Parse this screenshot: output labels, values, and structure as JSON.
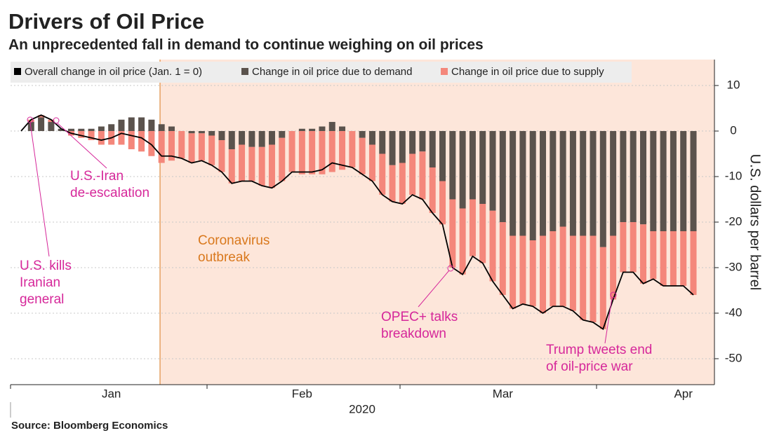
{
  "chart_data": {
    "type": "bar",
    "title": "Drivers of Oil Price",
    "subtitle": "An unprecedented fall in demand to continue weighing on oil prices",
    "ylabel": "U.S. dollars per barrel",
    "xlabel": "2020",
    "source": "Source: Bloomberg Economics",
    "categories": [
      null,
      null,
      null,
      null,
      null,
      null,
      null,
      null,
      null,
      "Jan",
      null,
      null,
      null,
      null,
      null,
      null,
      null,
      null,
      null,
      null,
      null,
      null,
      null,
      null,
      null,
      null,
      null,
      null,
      "Feb",
      null,
      null,
      null,
      null,
      null,
      null,
      null,
      null,
      null,
      null,
      null,
      null,
      null,
      null,
      null,
      null,
      null,
      null,
      null,
      "Mar",
      null,
      null,
      null,
      null,
      null,
      null,
      null,
      null,
      null,
      null,
      null,
      null,
      null,
      null,
      null,
      null,
      null,
      "Apr",
      null
    ],
    "series": [
      {
        "name": "Overall change in oil price (Jan. 1 = 0)",
        "type": "line",
        "color": "#000000",
        "values": [
          0,
          2.5,
          3.5,
          2.5,
          0.5,
          -0.5,
          -1,
          -1.5,
          -2,
          -1.5,
          -0.5,
          -1,
          -1.5,
          -3,
          -5.5,
          -5.5,
          -6,
          -7,
          -6.5,
          -7.5,
          -9,
          -11.5,
          -11,
          -11,
          -12,
          -12.5,
          -11,
          -9,
          -9,
          -9,
          -8.5,
          -7,
          -7.5,
          -8,
          -9.5,
          -11,
          -14,
          -15.5,
          -16,
          -14,
          -15,
          -18,
          -20.5,
          -30,
          -31.5,
          -27.5,
          -29,
          -33,
          -36,
          -39,
          -38,
          -38.5,
          -40,
          -38.5,
          -38.5,
          -39.5,
          -41.5,
          -42,
          -43.5,
          -37,
          -31,
          -31,
          -33.5,
          -32.5,
          -34,
          -34,
          -34,
          -36
        ]
      },
      {
        "name": "Change in oil price due to demand",
        "type": "bar",
        "color": "#5b534d",
        "values": [
          0,
          2,
          3,
          2,
          0.5,
          0.5,
          0.5,
          0.5,
          1,
          1.5,
          2.5,
          3,
          3,
          2.5,
          1.5,
          1,
          0,
          -0.5,
          -0.5,
          -1,
          -2,
          -4,
          -3,
          -3.5,
          -3.5,
          -3,
          -1.5,
          0,
          0.5,
          0.5,
          1,
          2,
          1,
          0,
          -1.5,
          -3,
          -5,
          -7.5,
          -7,
          -5,
          -4.5,
          -8,
          -11,
          -15,
          -17,
          -15,
          -16,
          -17.5,
          -20,
          -23,
          -23,
          -24,
          -23,
          -22,
          -21,
          -23,
          -23,
          -23,
          -25.5,
          -23,
          -20,
          -20,
          -20.5,
          -22,
          -22,
          -22,
          -22,
          -22
        ]
      },
      {
        "name": "Change in oil price due to supply",
        "type": "bar",
        "color": "#f4877b",
        "values": [
          0,
          0.5,
          0.5,
          0.5,
          0,
          -1,
          -1.5,
          -2,
          -3,
          -3,
          -3,
          -4,
          -4.5,
          -5.5,
          -7,
          -6.5,
          -6,
          -6.5,
          -6,
          -6.5,
          -7,
          -7.5,
          -8,
          -7.5,
          -8.5,
          -9.5,
          -9.5,
          -9,
          -9.5,
          -9.5,
          -9.5,
          -9,
          -8.5,
          -8,
          -8,
          -8,
          -9,
          -8,
          -9,
          -9,
          -10.5,
          -10,
          -9.5,
          -15,
          -14.5,
          -12.5,
          -13,
          -15.5,
          -16,
          -16,
          -15,
          -14.5,
          -17,
          -16.5,
          -17.5,
          -16.5,
          -18.5,
          -19,
          -18,
          -14,
          -11,
          -11,
          -13,
          -10.5,
          -12,
          -12,
          -12,
          -14
        ]
      }
    ],
    "ylim": [
      -55.7,
      15.7
    ],
    "yticks": [
      10,
      0,
      -10,
      -20,
      -30,
      -40,
      -50
    ],
    "grid": true,
    "annotations": [
      {
        "lines": [
          "U.S.-Iran",
          "de-escalation"
        ],
        "color": "#d6289a"
      },
      {
        "lines": [
          "U.S. kills",
          "Iranian",
          "general"
        ],
        "color": "#d6289a"
      },
      {
        "lines": [
          "Coronavirus",
          "outbreak"
        ],
        "color": "#d9781c"
      },
      {
        "lines": [
          "OPEC+ talks",
          "breakdown"
        ],
        "color": "#d6289a"
      },
      {
        "lines": [
          "Trump tweets end",
          "of oil-price war"
        ],
        "color": "#d6289a"
      }
    ]
  }
}
